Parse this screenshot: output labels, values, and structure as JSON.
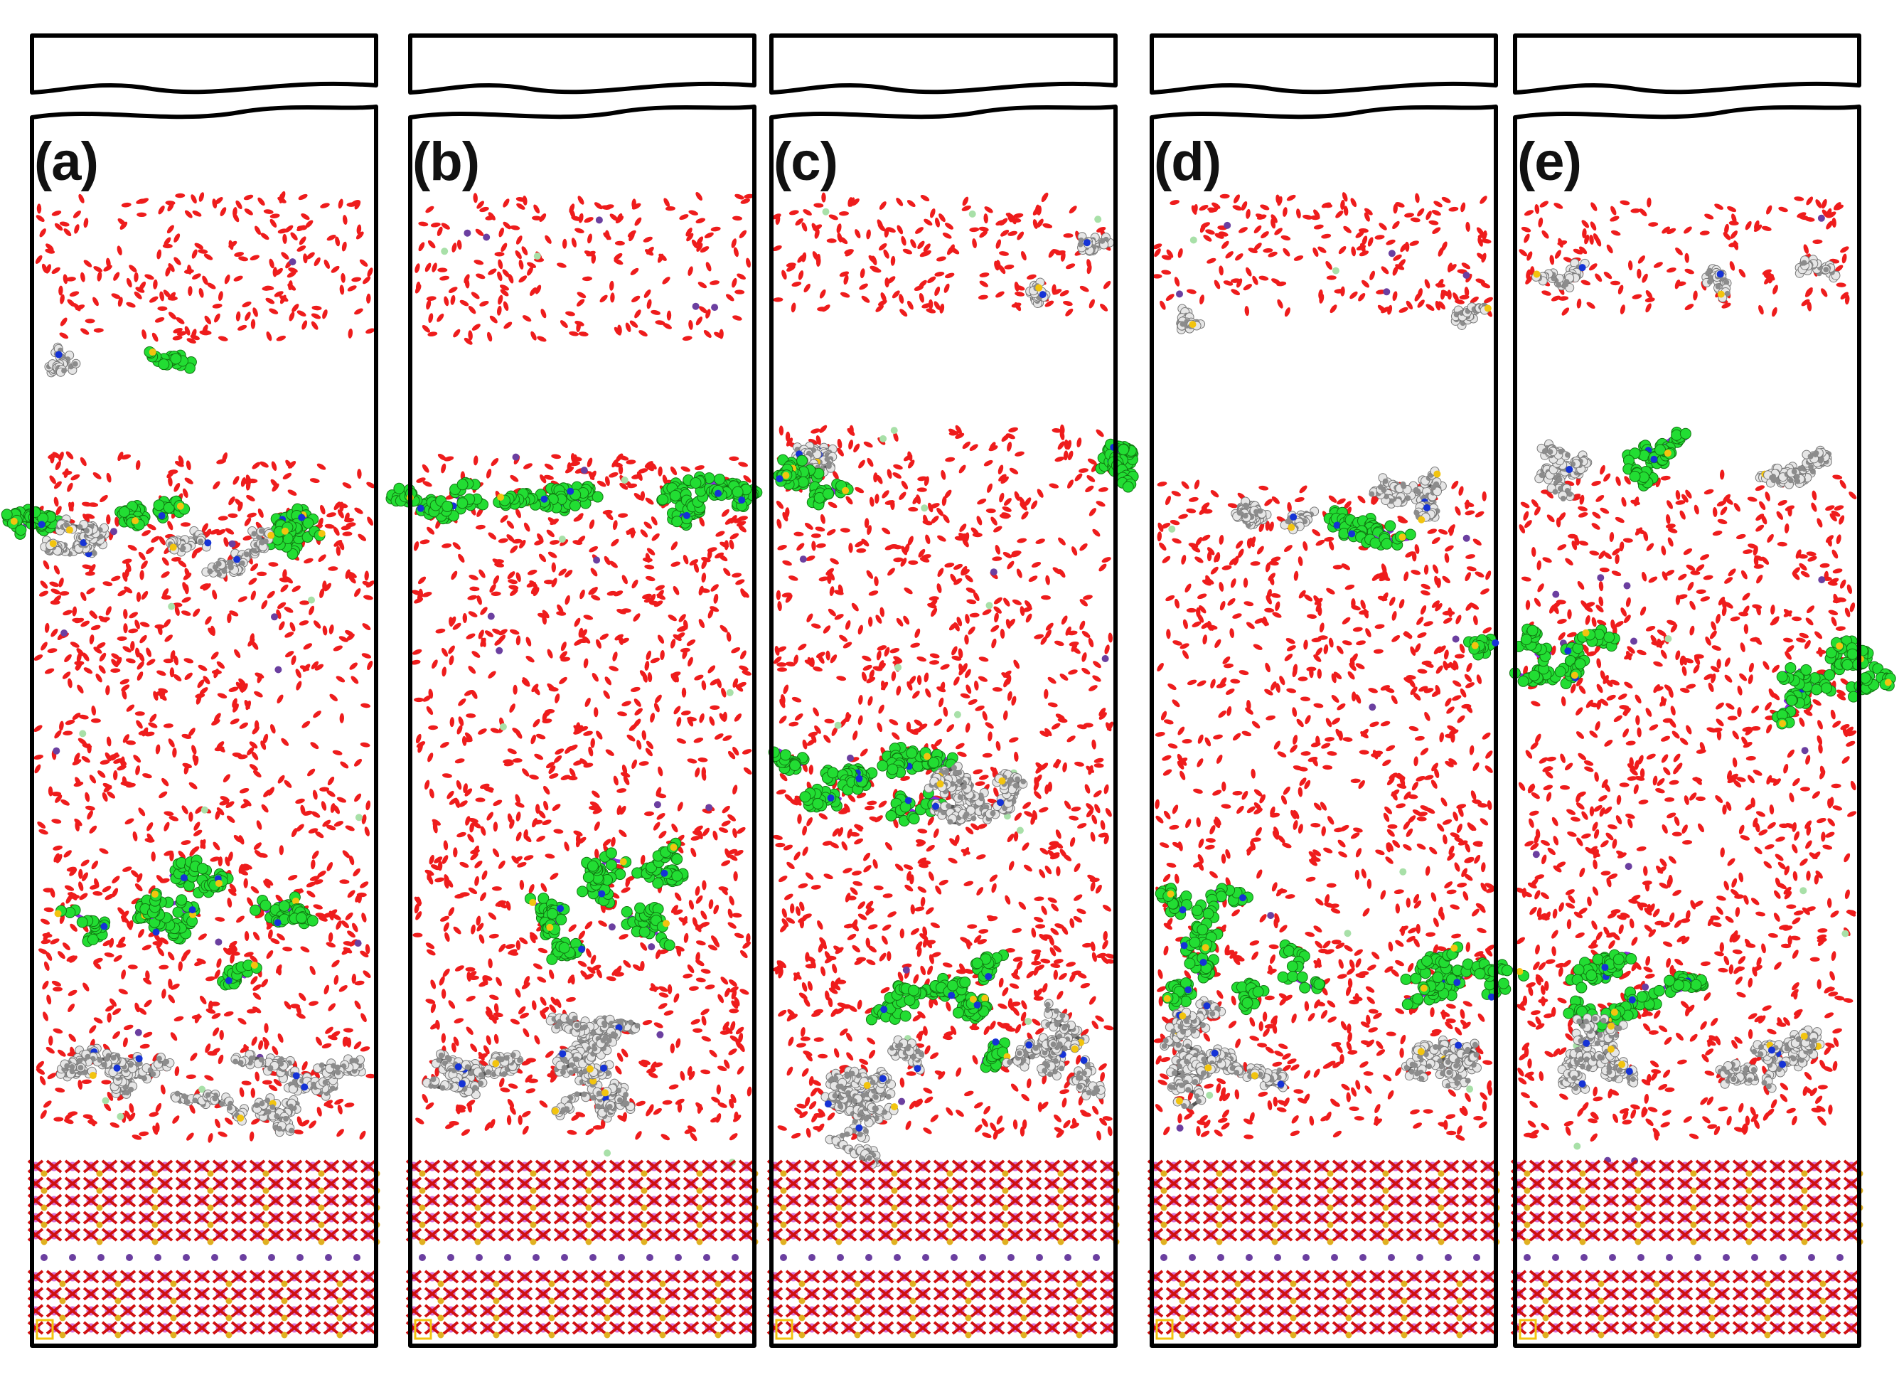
{
  "figure": {
    "panels": [
      {
        "label": "(a)",
        "variant": 0
      },
      {
        "label": "(b)",
        "variant": 1
      },
      {
        "label": "(c)",
        "variant": 2
      },
      {
        "label": "(d)",
        "variant": 3
      },
      {
        "label": "(e)",
        "variant": 4
      }
    ],
    "colors": {
      "water": "#ee1c1c",
      "fluorocarbon": "#22dd33",
      "fluorocarbon_backbone": "#8a2be2",
      "hydrocarbon": "#8c8c8c",
      "hydrocarbon_h": "#e6e6e6",
      "nitrogen": "#1533d6",
      "sulfur": "#f2c40f",
      "ion": "#6b3fa0",
      "chloride": "#a8e0a8",
      "silicon": "#d670d6",
      "aluminum": "#e0b020",
      "oxygen": "#d01010",
      "frame": "#000000"
    }
  }
}
